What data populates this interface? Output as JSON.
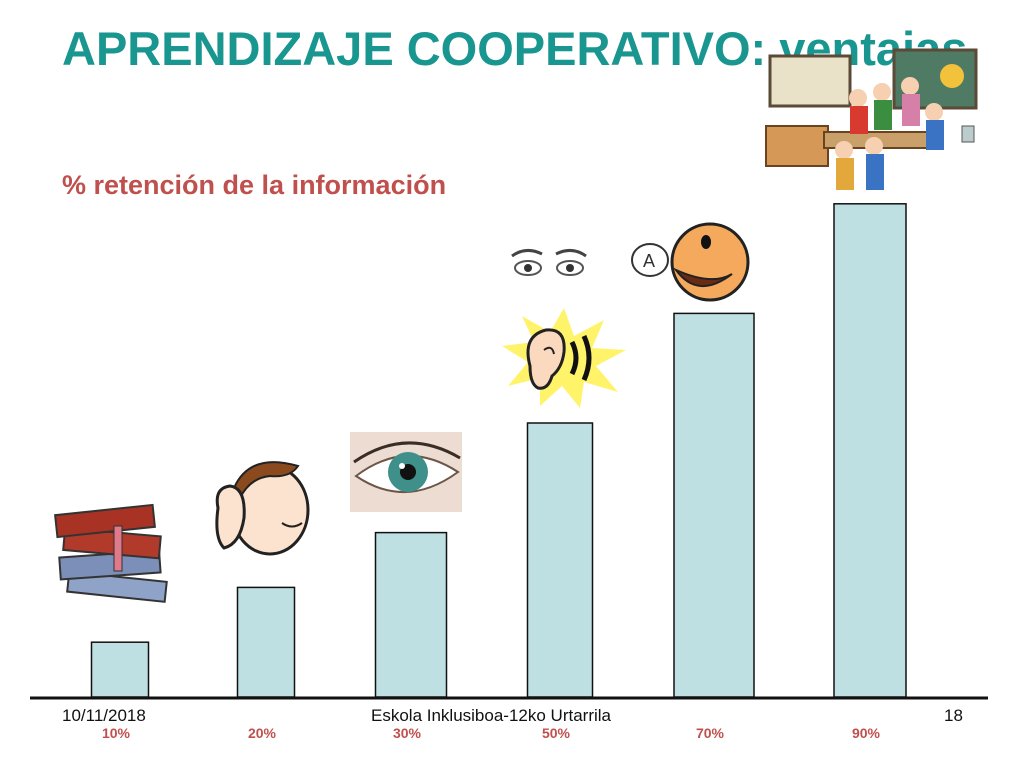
{
  "slide": {
    "title": "APRENDIZAJE COOPERATIVO: ventajas",
    "subtitle": "% retención de la información"
  },
  "chart_data": {
    "type": "bar",
    "categories": [
      "10%",
      "20%",
      "30%",
      "50%",
      "70%",
      "90%"
    ],
    "values": [
      10,
      20,
      30,
      50,
      70,
      90
    ],
    "title": "",
    "xlabel": "",
    "ylabel": "",
    "ylim": [
      0,
      100
    ],
    "bar_color": "#bfe0e3",
    "label_color": "#c0504d",
    "grid": false
  },
  "footer": {
    "date": "10/11/2018",
    "center": "Eskola Inklusiboa-12ko Urtarrila",
    "page": "18"
  },
  "illustrations": [
    "books-icon",
    "listening-person-icon",
    "eye-icon",
    "eyes-icon",
    "ear-icon",
    "speaking-face-icon",
    "classroom-group-icon"
  ]
}
